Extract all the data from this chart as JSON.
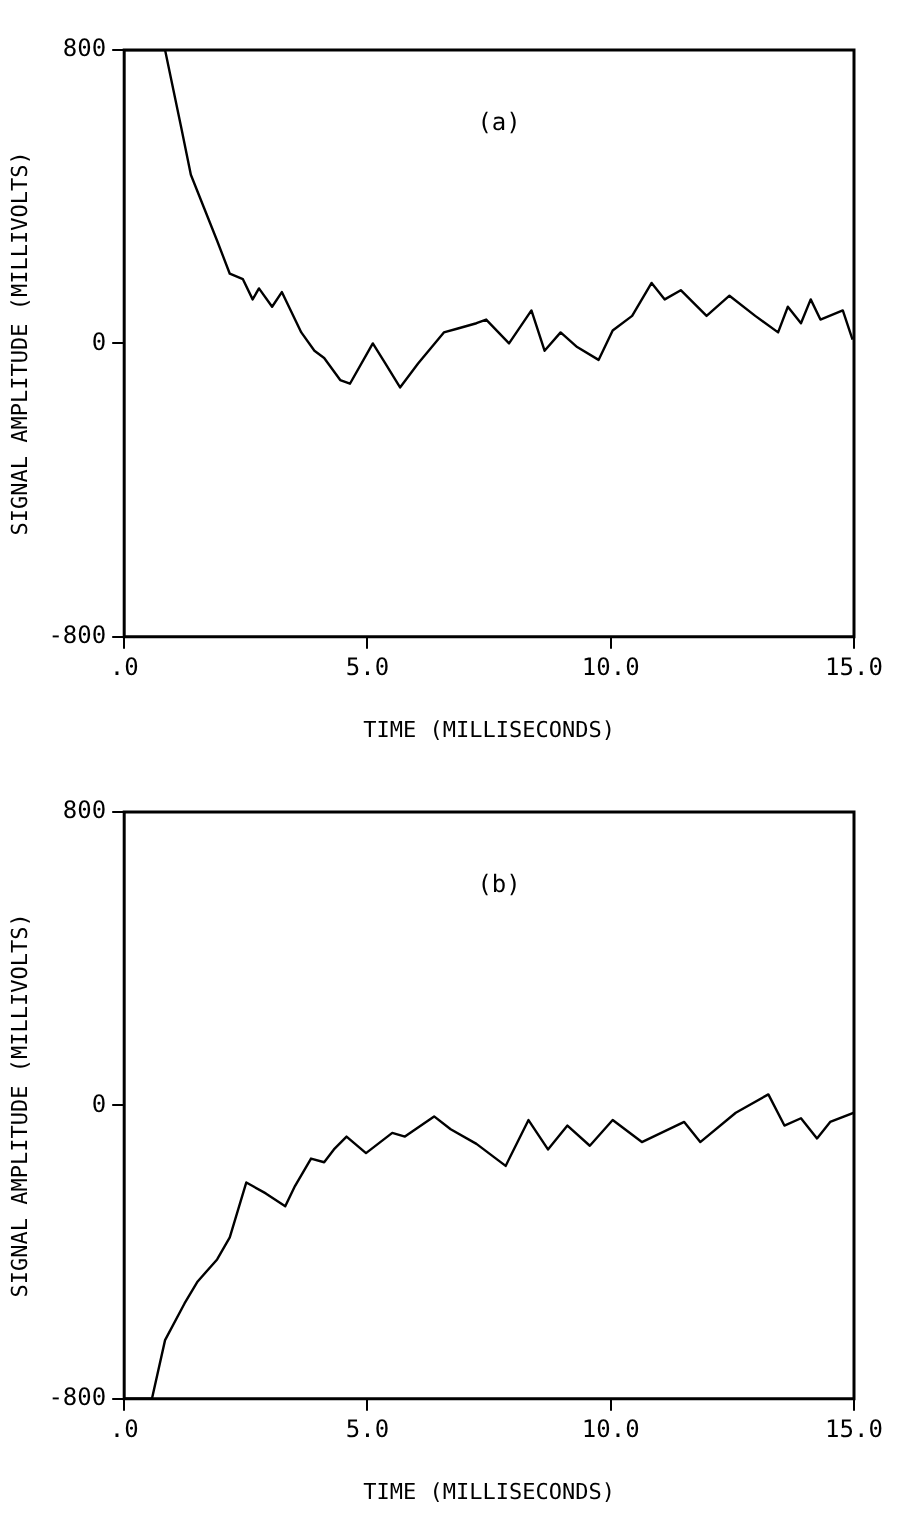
{
  "chart_data": [
    {
      "type": "line",
      "annotations": [
        "(a)"
      ],
      "xlabel": "TIME (MILLISECONDS)",
      "ylabel": "SIGNAL AMPLITUDE (MILLIVOLTS)",
      "xlim": [
        0,
        15
      ],
      "ylim": [
        -800,
        800
      ],
      "xticks": [
        {
          "value": 0,
          "label": ".0"
        },
        {
          "value": 5,
          "label": "5.0"
        },
        {
          "value": 10,
          "label": "10.0"
        },
        {
          "value": 15,
          "label": "15.0"
        }
      ],
      "yticks": [
        -800,
        0,
        800
      ],
      "grid": false,
      "legend": false,
      "marker": "none",
      "line_style": "solid",
      "series": [
        {
          "color": "#000000",
          "x": [
            0,
            0.84,
            1.17,
            1.37,
            1.64,
            1.91,
            2.17,
            2.44,
            2.64,
            2.77,
            3.04,
            3.24,
            3.64,
            3.91,
            4.11,
            4.44,
            4.64,
            5.11,
            5.37,
            5.67,
            6.04,
            6.57,
            6.84,
            7.24,
            7.44,
            7.91,
            8.37,
            8.64,
            8.97,
            9.31,
            9.75,
            10.04,
            10.44,
            10.84,
            11.11,
            11.44,
            11.97,
            12.44,
            12.97,
            13.44,
            13.64,
            13.91,
            14.11,
            14.31,
            14.77,
            14.97
          ],
          "values": [
            800,
            800,
            590,
            460,
            370,
            280,
            190,
            175,
            120,
            150,
            100,
            140,
            30,
            -20,
            -40,
            -100,
            -110,
            0,
            -55,
            -120,
            -55,
            30,
            40,
            55,
            65,
            0,
            90,
            -20,
            30,
            -10,
            -45,
            35,
            75,
            165,
            120,
            145,
            75,
            130,
            75,
            30,
            100,
            55,
            120,
            65,
            90,
            10
          ]
        }
      ]
    },
    {
      "type": "line",
      "annotations": [
        "(b)"
      ],
      "xlabel": "TIME (MILLISECONDS)",
      "ylabel": "SIGNAL AMPLITUDE (MILLIVOLTS)",
      "xlim": [
        0,
        15
      ],
      "ylim": [
        -800,
        800
      ],
      "xticks": [
        {
          "value": 0,
          "label": ".0"
        },
        {
          "value": 5,
          "label": "5.0"
        },
        {
          "value": 10,
          "label": "10.0"
        },
        {
          "value": 15,
          "label": "15.0"
        }
      ],
      "yticks": [
        -800,
        0,
        800
      ],
      "grid": false,
      "legend": false,
      "marker": "none",
      "line_style": "solid",
      "series": [
        {
          "color": "#000000",
          "x": [
            0,
            0.57,
            0.84,
            1.24,
            1.51,
            1.91,
            2.17,
            2.51,
            2.64,
            2.91,
            3.31,
            3.51,
            3.84,
            4.11,
            4.31,
            4.57,
            4.97,
            5.51,
            5.77,
            6.37,
            6.71,
            7.24,
            7.84,
            8.31,
            8.71,
            9.11,
            9.57,
            10.04,
            10.64,
            11.51,
            11.84,
            12.57,
            13.24,
            13.57,
            13.91,
            14.24,
            14.51,
            15
          ],
          "values": [
            -800,
            -800,
            -640,
            -540,
            -480,
            -420,
            -360,
            -210,
            -220,
            -240,
            -275,
            -220,
            -145,
            -155,
            -120,
            -85,
            -130,
            -75,
            -85,
            -30,
            -65,
            -105,
            -165,
            -40,
            -120,
            -55,
            -110,
            -40,
            -100,
            -45,
            -100,
            -20,
            30,
            -55,
            -35,
            -90,
            -45,
            -20
          ]
        }
      ]
    }
  ]
}
